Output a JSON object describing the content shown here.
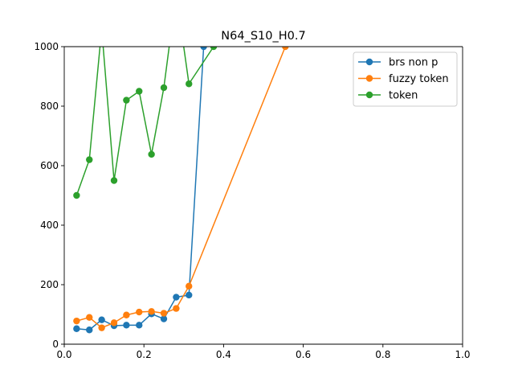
{
  "chart_data": {
    "type": "line",
    "title": "N64_S10_H0.7",
    "xlabel": "",
    "ylabel": "",
    "xlim": [
      0.0,
      1.0
    ],
    "ylim": [
      0,
      1000
    ],
    "xticks": [
      0.0,
      0.2,
      0.4,
      0.6,
      0.8,
      1.0
    ],
    "xtick_labels": [
      "0.0",
      "0.2",
      "0.4",
      "0.6",
      "0.8",
      "1.0"
    ],
    "yticks": [
      0,
      200,
      400,
      600,
      800,
      1000
    ],
    "ytick_labels": [
      "0",
      "200",
      "400",
      "600",
      "800",
      "1000"
    ],
    "grid": false,
    "legend_position": "top-right",
    "series": [
      {
        "name": "brs non p",
        "color": "#1f77b4",
        "x": [
          0.031,
          0.063,
          0.094,
          0.125,
          0.156,
          0.188,
          0.219,
          0.25,
          0.281,
          0.313,
          0.35
        ],
        "y": [
          52,
          48,
          82,
          62,
          64,
          64,
          102,
          85,
          158,
          165,
          1000
        ]
      },
      {
        "name": "fuzzy token",
        "color": "#ff7f0e",
        "x": [
          0.031,
          0.063,
          0.094,
          0.125,
          0.156,
          0.188,
          0.219,
          0.25,
          0.281,
          0.313,
          0.555
        ],
        "y": [
          78,
          90,
          55,
          72,
          98,
          108,
          110,
          104,
          120,
          195,
          1000
        ]
      },
      {
        "name": "token",
        "color": "#2ca02c",
        "x": [
          0.031,
          0.063,
          0.094,
          0.125,
          0.156,
          0.188,
          0.219,
          0.25,
          0.281,
          0.313,
          0.375
        ],
        "y": [
          500,
          620,
          1060,
          550,
          820,
          850,
          638,
          862,
          1180,
          875,
          1000
        ]
      }
    ]
  }
}
